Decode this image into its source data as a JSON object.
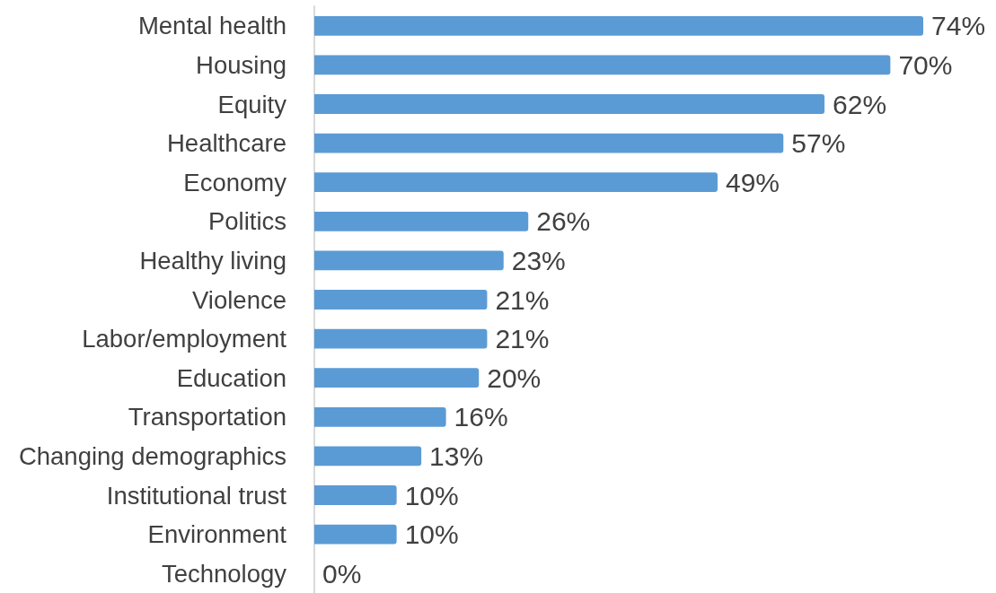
{
  "chart_data": {
    "type": "bar",
    "orientation": "horizontal",
    "categories": [
      "Mental health",
      "Housing",
      "Equity",
      "Healthcare",
      "Economy",
      "Politics",
      "Healthy living",
      "Violence",
      "Labor/employment",
      "Education",
      "Transportation",
      "Changing demographics",
      "Institutional trust",
      "Environment",
      "Technology"
    ],
    "values": [
      74,
      70,
      62,
      57,
      49,
      26,
      23,
      21,
      21,
      20,
      16,
      13,
      10,
      10,
      0
    ],
    "value_labels": [
      "74%",
      "70%",
      "62%",
      "57%",
      "49%",
      "26%",
      "23%",
      "21%",
      "21%",
      "20%",
      "16%",
      "13%",
      "10%",
      "10%",
      "0%"
    ],
    "color": "#5b9bd5"
  }
}
